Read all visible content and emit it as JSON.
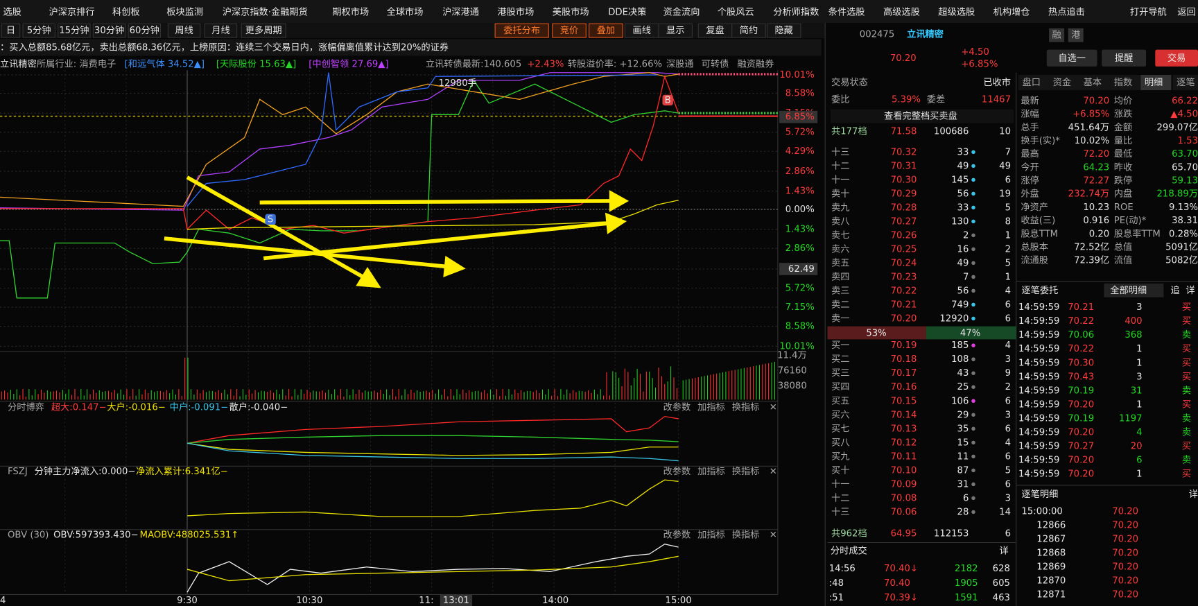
{
  "menu": [
    "选股",
    "沪深京排行",
    "科创板",
    "板块监测",
    "沪深京指数·金融期货",
    "期权市场",
    "全球市场",
    "沪深港通",
    "港股市场",
    "美股市场",
    "DDE决策",
    "资金流向",
    "个股风云",
    "分析师指数",
    "条件选股",
    "高级选股",
    "超级选股",
    "机构增仓",
    "热点追击",
    "打开导航",
    "返回"
  ],
  "periods": [
    "日",
    "5分钟",
    "15分钟",
    "30分钟",
    "60分钟",
    "周线",
    "月线",
    "更多周期"
  ],
  "tools": [
    "委托分布",
    "竞价",
    "叠加",
    "画线",
    "显示",
    "复盘",
    "简约",
    "隐藏"
  ],
  "notice": "：买入总额85.68亿元，卖出总额68.36亿元，上榜原因：连续三个交易日内，涨幅偏离值累计达到20%的证券",
  "info": {
    "stock": "立讯精密",
    "industry": "所属行业: 消费电子",
    "peers": [
      "[和远气体 34.52▲]",
      "[天际股份 15.63▲]",
      "[中创智领 27.69▲]"
    ],
    "bond": "立讯转债最新:140.605",
    "bond_change": "+2.43%",
    "premium": "转股溢价率: +12.66%",
    "links": [
      "深股通",
      "可转债",
      "融资融券"
    ]
  },
  "chart": {
    "price_labels": [
      "10.01%",
      "8.58%",
      "7.15%",
      "5.72%",
      "4.29%",
      "2.86%",
      "1.43%",
      "0.00%",
      "1.43%",
      "2.86%",
      "62.49",
      "5.72%",
      "7.15%",
      "8.58%",
      "10.01%"
    ],
    "current": "6.85%",
    "annotation": "12980手",
    "markers": [
      "B",
      "S"
    ],
    "volume_labels": [
      "11.4万",
      "76160",
      "38080"
    ],
    "time_labels": [
      "4",
      "9:30",
      "10:30",
      "11:",
      "13:01",
      "14:00",
      "15:00"
    ]
  },
  "panels": [
    [
      "分时博弈",
      "超大:0.147−",
      "大户:-0.016−",
      "中户:-0.091−",
      "散户:-0.040−"
    ],
    [
      "FSZJ",
      "分钟主力净流入:0.000−",
      "净流入累计:6.341亿−"
    ],
    [
      "OBV (30)",
      "OBV:597393.430−",
      "MAOBV:488025.531↑"
    ]
  ],
  "panel_buttons": [
    "改参数",
    "加指标",
    "换指标"
  ],
  "quote": {
    "code": "002475",
    "name": "立讯精密",
    "price": "70.20",
    "change": "+4.50",
    "pct": "+6.85%",
    "tags": [
      "融",
      "港"
    ],
    "buttons": [
      "自选一",
      "提醒",
      "交易"
    ]
  },
  "book": {
    "status": [
      "交易状态",
      "已收市"
    ],
    "ratio": [
      "委比",
      "5.39%",
      "委差",
      "11467"
    ],
    "full": "查看完整档买卖盘",
    "sell_total": [
      "共177档",
      "71.58",
      "100686",
      "10"
    ],
    "sell": [
      [
        "十三",
        "70.32",
        "33",
        "7"
      ],
      [
        "十二",
        "70.31",
        "49",
        "49"
      ],
      [
        "十一",
        "70.30",
        "145",
        "6"
      ],
      [
        "卖十",
        "70.29",
        "56",
        "19"
      ],
      [
        "卖九",
        "70.28",
        "33",
        "5"
      ],
      [
        "卖八",
        "70.27",
        "130",
        "8"
      ],
      [
        "卖七",
        "70.26",
        "2",
        "1"
      ],
      [
        "卖六",
        "70.25",
        "16",
        "2"
      ],
      [
        "卖五",
        "70.24",
        "49",
        "5"
      ],
      [
        "卖四",
        "70.23",
        "7",
        "1"
      ],
      [
        "卖三",
        "70.22",
        "56",
        "4"
      ],
      [
        "卖二",
        "70.21",
        "749",
        "6"
      ],
      [
        "卖一",
        "70.20",
        "12920",
        "6"
      ]
    ],
    "split": [
      "53%",
      "47%"
    ],
    "buy": [
      [
        "买一",
        "70.19",
        "185",
        "4"
      ],
      [
        "买二",
        "70.18",
        "108",
        "3"
      ],
      [
        "买三",
        "70.17",
        "43",
        "9"
      ],
      [
        "买四",
        "70.16",
        "25",
        "2"
      ],
      [
        "买五",
        "70.15",
        "106",
        "6"
      ],
      [
        "买六",
        "70.14",
        "29",
        "3"
      ],
      [
        "买七",
        "70.13",
        "35",
        "6"
      ],
      [
        "买八",
        "70.12",
        "15",
        "4"
      ],
      [
        "买九",
        "70.11",
        "11",
        "6"
      ],
      [
        "买十",
        "70.10",
        "87",
        "5"
      ],
      [
        "十一",
        "70.09",
        "31",
        "6"
      ],
      [
        "十二",
        "70.08",
        "6",
        "3"
      ],
      [
        "十三",
        "70.06",
        "28",
        "14"
      ]
    ],
    "buy_total": [
      "共962档",
      "64.95",
      "112153",
      "6"
    ]
  },
  "trades": {
    "title": "分时成交",
    "more": "详",
    "rows": [
      [
        "14:56",
        "70.40↓",
        "2182",
        "628"
      ],
      [
        ":48",
        "70.40",
        "1905",
        "605"
      ],
      [
        ":51",
        "70.39↓",
        "1591",
        "463"
      ]
    ]
  },
  "tabs": [
    "盘口",
    "资金",
    "基本",
    "指数",
    "明细",
    "逐笔"
  ],
  "stats": [
    [
      "最新",
      "70.20",
      "均价",
      "66.22"
    ],
    [
      "涨幅",
      "+6.85%",
      "涨跌",
      "▲4.50"
    ],
    [
      "总手",
      "451.64万",
      "金额",
      "299.07亿"
    ],
    [
      "换手(实)*",
      "10.02%",
      "量比",
      "1.53"
    ],
    [
      "最高",
      "72.20",
      "最低",
      "63.70"
    ],
    [
      "今开",
      "64.23",
      "昨收",
      "65.70"
    ],
    [
      "涨停",
      "72.27",
      "跌停",
      "59.13"
    ],
    [
      "外盘",
      "232.74万",
      "内盘",
      "218.89万"
    ],
    [
      "净资产",
      "10.23",
      "ROE",
      "9.13%"
    ],
    [
      "收益(三)",
      "0.916",
      "PE(动)*",
      "38.31"
    ],
    [
      "股息TTM",
      "0.20",
      "股息率TTM",
      "0.28%"
    ],
    [
      "总股本",
      "72.52亿",
      "总值",
      "5091亿"
    ],
    [
      "流通股",
      "72.39亿",
      "流值",
      "5082亿"
    ]
  ],
  "orders": {
    "title": "逐笔委托",
    "filter": "全部明细",
    "buttons": [
      "追",
      "详"
    ],
    "rows": [
      [
        "14:59:59",
        "70.21",
        "3",
        "买"
      ],
      [
        "14:59:59",
        "70.22",
        "400",
        "买"
      ],
      [
        "14:59:59",
        "70.06",
        "368",
        "卖"
      ],
      [
        "14:59:59",
        "70.22",
        "1",
        "买"
      ],
      [
        "14:59:59",
        "70.30",
        "1",
        "买"
      ],
      [
        "14:59:59",
        "70.43",
        "3",
        "买"
      ],
      [
        "14:59:59",
        "70.19",
        "31",
        "卖"
      ],
      [
        "14:59:59",
        "70.20",
        "1",
        "买"
      ],
      [
        "14:59:59",
        "70.19",
        "1197",
        "卖"
      ],
      [
        "14:59:59",
        "70.20",
        "4",
        "卖"
      ],
      [
        "14:59:59",
        "70.27",
        "20",
        "买"
      ],
      [
        "14:59:59",
        "70.20",
        "6",
        "卖"
      ],
      [
        "14:59:59",
        "70.20",
        "1",
        "买"
      ]
    ]
  },
  "details": {
    "title": "逐笔明细",
    "more": "详",
    "rows": [
      [
        "15:00:00",
        "70.20"
      ],
      [
        "12866",
        "70.20"
      ],
      [
        "12867",
        "70.20"
      ],
      [
        "12868",
        "70.20"
      ],
      [
        "12869",
        "70.20"
      ],
      [
        "12870",
        "70.20"
      ],
      [
        "12871",
        "70.20"
      ]
    ]
  }
}
